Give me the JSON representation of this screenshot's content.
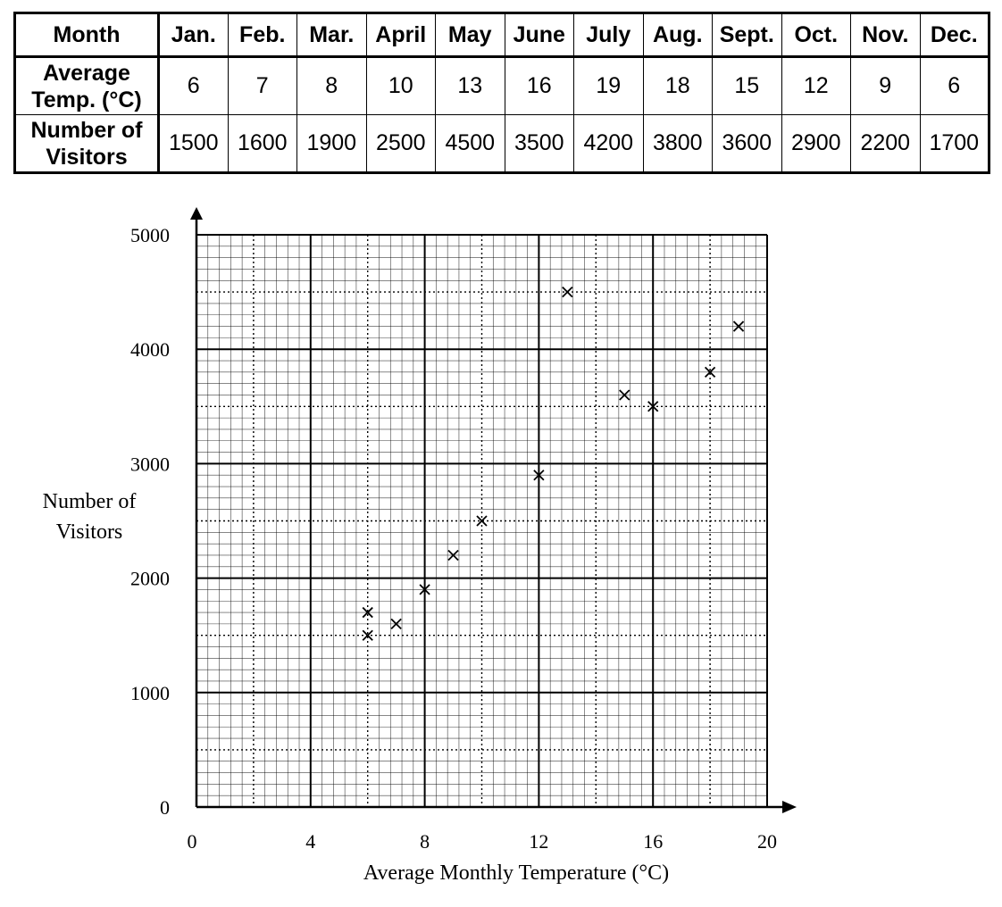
{
  "table": {
    "headers": {
      "month": "Month",
      "temp": [
        "Average",
        "Temp. (°C)"
      ],
      "visitors": [
        "Number of",
        "Visitors"
      ]
    },
    "months": [
      "Jan.",
      "Feb.",
      "Mar.",
      "April",
      "May",
      "June",
      "July",
      "Aug.",
      "Sept.",
      "Oct.",
      "Nov.",
      "Dec."
    ],
    "temps": [
      "6",
      "7",
      "8",
      "10",
      "13",
      "16",
      "19",
      "18",
      "15",
      "12",
      "9",
      "6"
    ],
    "visitors": [
      "1500",
      "1600",
      "1900",
      "2500",
      "4500",
      "3500",
      "4200",
      "3800",
      "3600",
      "2900",
      "2200",
      "1700"
    ]
  },
  "chart_data": {
    "type": "scatter",
    "title": "",
    "xlabel": "Average Monthly Temperature (°C)",
    "ylabel": [
      "Number of",
      "Visitors"
    ],
    "xlim": [
      0,
      20
    ],
    "ylim": [
      0,
      5000
    ],
    "xticks": [
      0,
      4,
      8,
      12,
      16,
      20
    ],
    "yticks": [
      0,
      1000,
      2000,
      3000,
      4000,
      5000
    ],
    "grid": true,
    "marker": "x",
    "points": [
      {
        "x": 6,
        "y": 1500
      },
      {
        "x": 7,
        "y": 1600
      },
      {
        "x": 8,
        "y": 1900
      },
      {
        "x": 10,
        "y": 2500
      },
      {
        "x": 13,
        "y": 4500
      },
      {
        "x": 16,
        "y": 3500
      },
      {
        "x": 19,
        "y": 4200
      },
      {
        "x": 18,
        "y": 3800
      },
      {
        "x": 15,
        "y": 3600
      },
      {
        "x": 12,
        "y": 2900
      },
      {
        "x": 9,
        "y": 2200
      },
      {
        "x": 6,
        "y": 1700
      }
    ]
  }
}
